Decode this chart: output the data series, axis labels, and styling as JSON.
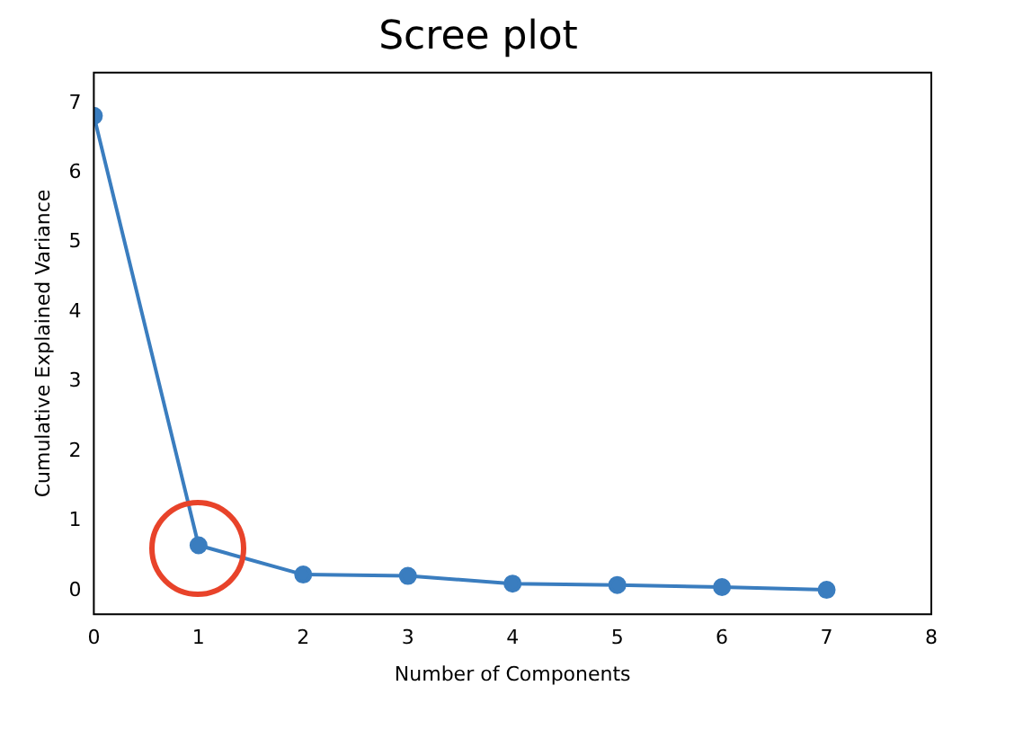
{
  "chart_data": {
    "type": "line",
    "title": "Scree plot",
    "xlabel": "Number of Components",
    "ylabel": "Cumulative Explained Variance",
    "x": [
      0,
      1,
      2,
      3,
      4,
      5,
      6,
      7
    ],
    "series": [
      {
        "color": "#3a7dbf",
        "values": [
          6.82,
          0.65,
          0.23,
          0.21,
          0.1,
          0.08,
          0.05,
          0.01
        ]
      }
    ],
    "xlim": [
      0,
      8
    ],
    "xticks": [
      0,
      1,
      2,
      3,
      4,
      5,
      6,
      7,
      8
    ],
    "ylim": [
      -0.34,
      7.44
    ],
    "yticks": [
      0,
      1,
      2,
      3,
      4,
      5,
      6,
      7
    ],
    "grid": false,
    "legend": false,
    "marker": "circle",
    "line_style": "solid"
  }
}
